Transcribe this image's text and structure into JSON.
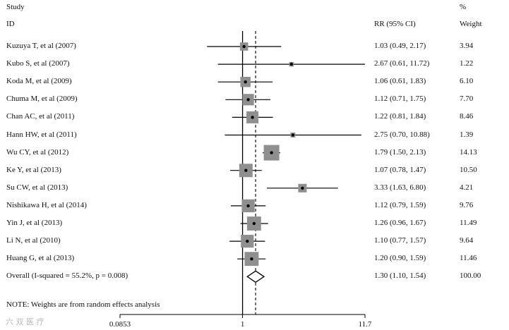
{
  "headers": {
    "study": "Study",
    "id": "ID",
    "rr": "RR (95% CI)",
    "percent": "%",
    "weight": "Weight"
  },
  "note": "NOTE: Weights are from random effects analysis",
  "watermark": "六 双 医 疗",
  "chart_data": {
    "type": "forest",
    "scale": "log",
    "x_ticks": [
      "0.0853",
      "1",
      "11.7"
    ],
    "x_tick_values": [
      0.0853,
      1,
      11.7
    ],
    "x_range": [
      0.0853,
      11.7
    ],
    "null_line": 1,
    "overall_line": 1.3,
    "studies": [
      {
        "label": "Kuzuya T, et al (2007)",
        "rr": 1.03,
        "lo": 0.49,
        "hi": 2.17,
        "ci_text": "1.03 (0.49, 2.17)",
        "weight": 3.94,
        "weight_text": "3.94"
      },
      {
        "label": "Kubo S, et al (2007)",
        "rr": 2.67,
        "lo": 0.61,
        "hi": 11.72,
        "ci_text": "2.67 (0.61, 11.72)",
        "weight": 1.22,
        "weight_text": "1.22"
      },
      {
        "label": "Koda M, et al (2009)",
        "rr": 1.06,
        "lo": 0.61,
        "hi": 1.83,
        "ci_text": "1.06 (0.61, 1.83)",
        "weight": 6.1,
        "weight_text": "6.10"
      },
      {
        "label": "Chuma M, et al (2009)",
        "rr": 1.12,
        "lo": 0.71,
        "hi": 1.75,
        "ci_text": "1.12 (0.71, 1.75)",
        "weight": 7.7,
        "weight_text": "7.70"
      },
      {
        "label": "Chan AC, et al (2011)",
        "rr": 1.22,
        "lo": 0.81,
        "hi": 1.84,
        "ci_text": "1.22 (0.81, 1.84)",
        "weight": 8.46,
        "weight_text": "8.46"
      },
      {
        "label": "Hann HW, et al (2011)",
        "rr": 2.75,
        "lo": 0.7,
        "hi": 10.88,
        "ci_text": "2.75 (0.70, 10.88)",
        "weight": 1.39,
        "weight_text": "1.39"
      },
      {
        "label": "Wu CY, et al (2012)",
        "rr": 1.79,
        "lo": 1.5,
        "hi": 2.13,
        "ci_text": "1.79 (1.50, 2.13)",
        "weight": 14.13,
        "weight_text": "14.13"
      },
      {
        "label": "Ke Y, et al (2013)",
        "rr": 1.07,
        "lo": 0.78,
        "hi": 1.47,
        "ci_text": "1.07 (0.78, 1.47)",
        "weight": 10.5,
        "weight_text": "10.50"
      },
      {
        "label": "Su CW, et al (2013)",
        "rr": 3.33,
        "lo": 1.63,
        "hi": 6.8,
        "ci_text": "3.33 (1.63, 6.80)",
        "weight": 4.21,
        "weight_text": "4.21"
      },
      {
        "label": "Nishikawa H, et al (2014)",
        "rr": 1.12,
        "lo": 0.79,
        "hi": 1.59,
        "ci_text": "1.12 (0.79, 1.59)",
        "weight": 9.76,
        "weight_text": "9.76"
      },
      {
        "label": "Yin J, et al (2013)",
        "rr": 1.26,
        "lo": 0.96,
        "hi": 1.67,
        "ci_text": "1.26 (0.96, 1.67)",
        "weight": 11.49,
        "weight_text": "11.49"
      },
      {
        "label": "Li N, et al (2010)",
        "rr": 1.1,
        "lo": 0.77,
        "hi": 1.57,
        "ci_text": "1.10 (0.77, 1.57)",
        "weight": 9.64,
        "weight_text": "9.64"
      },
      {
        "label": "Huang G, et al (2013)",
        "rr": 1.2,
        "lo": 0.9,
        "hi": 1.59,
        "ci_text": "1.20 (0.90, 1.59)",
        "weight": 11.46,
        "weight_text": "11.46"
      }
    ],
    "overall": {
      "label": "Overall  (I-squared = 55.2%, p = 0.008)",
      "rr": 1.3,
      "lo": 1.1,
      "hi": 1.54,
      "ci_text": "1.30 (1.10, 1.54)",
      "weight_text": "100.00"
    },
    "colors": {
      "box": "#8f8f8f",
      "line": "#000000",
      "point": "#000000"
    }
  }
}
